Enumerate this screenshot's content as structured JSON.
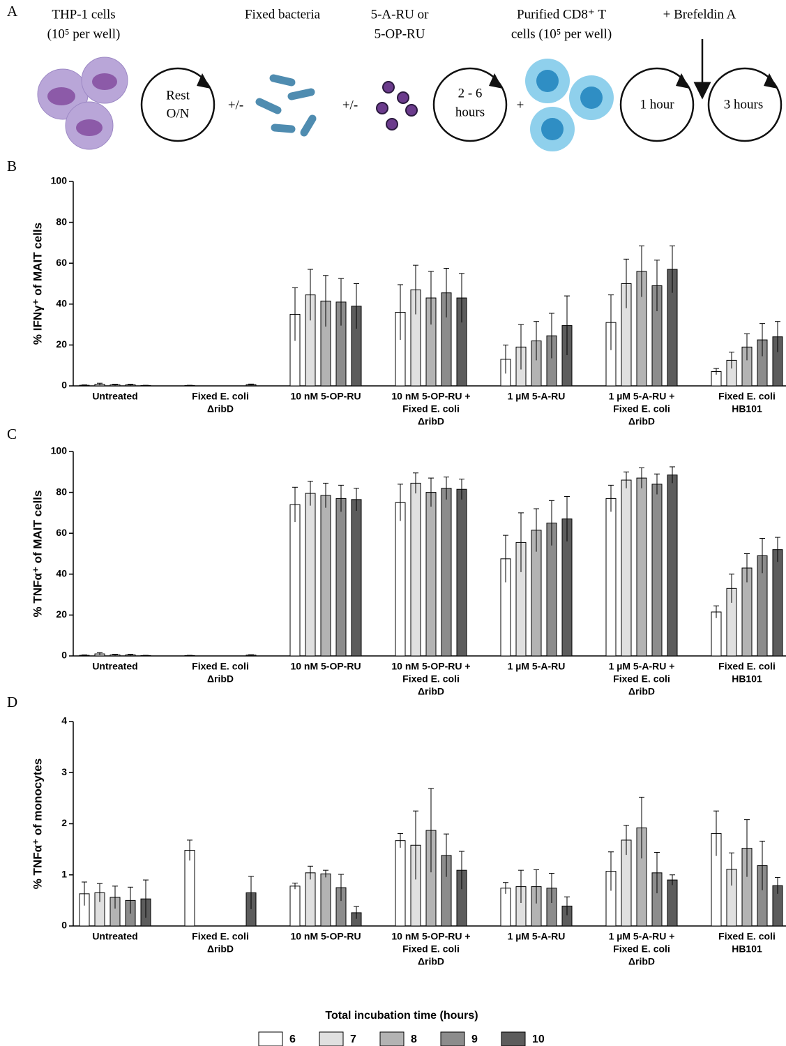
{
  "panel_labels": [
    "A",
    "B",
    "C",
    "D"
  ],
  "schematic": {
    "thp1": [
      "THP-1 cells",
      "(10⁵ per well)"
    ],
    "bacteria": "Fixed bacteria",
    "ligand": [
      "5-A-RU or",
      "5-OP-RU"
    ],
    "tcells": [
      "Purified CD8⁺ T",
      "cells (10⁵ per well)"
    ],
    "brefeldin": "+ Brefeldin A",
    "rest": [
      "Rest",
      "O/N"
    ],
    "plusminus1": "+/-",
    "plusminus2": "+/-",
    "incubation": [
      "2 - 6",
      "hours"
    ],
    "plus": "+",
    "hour1": "1 hour",
    "hour3": "3 hours"
  },
  "legend": {
    "title": "Total incubation time (hours)",
    "series": [
      {
        "name": "6",
        "color": "#ffffff"
      },
      {
        "name": "7",
        "color": "#e0e0e0"
      },
      {
        "name": "8",
        "color": "#b3b3b3"
      },
      {
        "name": "9",
        "color": "#8c8c8c"
      },
      {
        "name": "10",
        "color": "#5c5c5c"
      }
    ]
  },
  "chart_data": [
    {
      "type": "bar",
      "y_label": "% IFNγ⁺ of MAIT cells",
      "ylim": [
        0,
        100
      ],
      "yticks": [
        0,
        20,
        40,
        60,
        80,
        100
      ],
      "categories": [
        [
          "Untreated"
        ],
        [
          "Fixed E. coli",
          "ΔribD"
        ],
        [
          "10 nM 5-OP-RU"
        ],
        [
          "10 nM 5-OP-RU +",
          "Fixed E. coli",
          "ΔribD"
        ],
        [
          "1 µM 5-A-RU"
        ],
        [
          "1 µM 5-A-RU +",
          "Fixed E. coli",
          "ΔribD"
        ],
        [
          "Fixed E. coli",
          "HB101"
        ]
      ],
      "series": [
        {
          "values": [
            0.3,
            0.2,
            35,
            36,
            13,
            31,
            7
          ],
          "errors": [
            0.2,
            0.1,
            13,
            13.5,
            7,
            13.5,
            1.5
          ]
        },
        {
          "values": [
            0.8,
            null,
            44.5,
            47,
            19,
            50,
            12.5
          ],
          "errors": [
            0.5,
            null,
            12.5,
            12,
            11,
            12,
            4
          ]
        },
        {
          "values": [
            0.5,
            null,
            41.5,
            43,
            22,
            56,
            19
          ],
          "errors": [
            0.3,
            null,
            12.5,
            13,
            9.5,
            12.5,
            6.5
          ]
        },
        {
          "values": [
            0.5,
            null,
            41,
            45.5,
            24.5,
            49,
            22.5
          ],
          "errors": [
            0.3,
            null,
            11.5,
            12,
            11,
            12.5,
            8
          ]
        },
        {
          "values": [
            0.2,
            0.6,
            39,
            43,
            29.5,
            57,
            24
          ],
          "errors": [
            0.1,
            0.3,
            11,
            12,
            14.5,
            11.5,
            7.5
          ]
        }
      ]
    },
    {
      "type": "bar",
      "y_label": "% TNFα⁺ of MAIT cells",
      "ylim": [
        0,
        100
      ],
      "yticks": [
        0,
        20,
        40,
        60,
        80,
        100
      ],
      "categories": [
        [
          "Untreated"
        ],
        [
          "Fixed E. coli",
          "ΔribD"
        ],
        [
          "10 nM 5-OP-RU"
        ],
        [
          "10 nM 5-OP-RU +",
          "Fixed E. coli",
          "ΔribD"
        ],
        [
          "1 µM 5-A-RU"
        ],
        [
          "1 µM 5-A-RU +",
          "Fixed E. coli",
          "ΔribD"
        ],
        [
          "Fixed E. coli",
          "HB101"
        ]
      ],
      "series": [
        {
          "values": [
            0.3,
            0.2,
            74,
            75,
            47.5,
            77,
            21.5
          ],
          "errors": [
            0.2,
            0.1,
            8.5,
            9,
            11.5,
            6.5,
            3
          ]
        },
        {
          "values": [
            1,
            null,
            79.5,
            84.5,
            55.5,
            86,
            33
          ],
          "errors": [
            0.6,
            null,
            6,
            5,
            14.5,
            4,
            7
          ]
        },
        {
          "values": [
            0.5,
            null,
            78.5,
            80,
            61.5,
            87,
            43
          ],
          "errors": [
            0.3,
            null,
            6,
            7,
            10.5,
            5,
            7
          ]
        },
        {
          "values": [
            0.5,
            null,
            77,
            82,
            65,
            84,
            49
          ],
          "errors": [
            0.3,
            null,
            6.5,
            5.5,
            11,
            5,
            8.5
          ]
        },
        {
          "values": [
            0.2,
            0.4,
            76.5,
            81.5,
            67,
            88.5,
            52
          ],
          "errors": [
            0.1,
            0.2,
            5.5,
            5,
            11,
            4,
            6
          ]
        }
      ]
    },
    {
      "type": "bar",
      "y_label": "% TNFα⁺ of monocytes",
      "ylim": [
        0,
        4
      ],
      "yticks": [
        0,
        1,
        2,
        3,
        4
      ],
      "categories": [
        [
          "Untreated"
        ],
        [
          "Fixed E. coli",
          "ΔribD"
        ],
        [
          "10 nM 5-OP-RU"
        ],
        [
          "10 nM 5-OP-RU +",
          "Fixed E. coli",
          "ΔribD"
        ],
        [
          "1 µM 5-A-RU"
        ],
        [
          "1 µM 5-A-RU +",
          "Fixed E. coli",
          "ΔribD"
        ],
        [
          "Fixed E. coli",
          "HB101"
        ]
      ],
      "series": [
        {
          "values": [
            0.63,
            1.48,
            0.78,
            1.67,
            0.74,
            1.07,
            1.81
          ],
          "errors": [
            0.23,
            0.2,
            0.06,
            0.14,
            0.11,
            0.38,
            0.44
          ]
        },
        {
          "values": [
            0.65,
            null,
            1.04,
            1.58,
            0.77,
            1.68,
            1.11
          ],
          "errors": [
            0.18,
            null,
            0.13,
            0.67,
            0.32,
            0.29,
            0.32
          ]
        },
        {
          "values": [
            0.56,
            null,
            1.02,
            1.87,
            0.77,
            1.92,
            1.52
          ],
          "errors": [
            0.22,
            null,
            0.07,
            0.82,
            0.33,
            0.6,
            0.56
          ]
        },
        {
          "values": [
            0.5,
            null,
            0.75,
            1.38,
            0.74,
            1.04,
            1.18
          ],
          "errors": [
            0.26,
            null,
            0.26,
            0.42,
            0.29,
            0.4,
            0.48
          ]
        },
        {
          "values": [
            0.53,
            0.65,
            0.26,
            1.09,
            0.39,
            0.9,
            0.79
          ],
          "errors": [
            0.37,
            0.32,
            0.12,
            0.37,
            0.18,
            0.1,
            0.16
          ]
        }
      ]
    }
  ]
}
